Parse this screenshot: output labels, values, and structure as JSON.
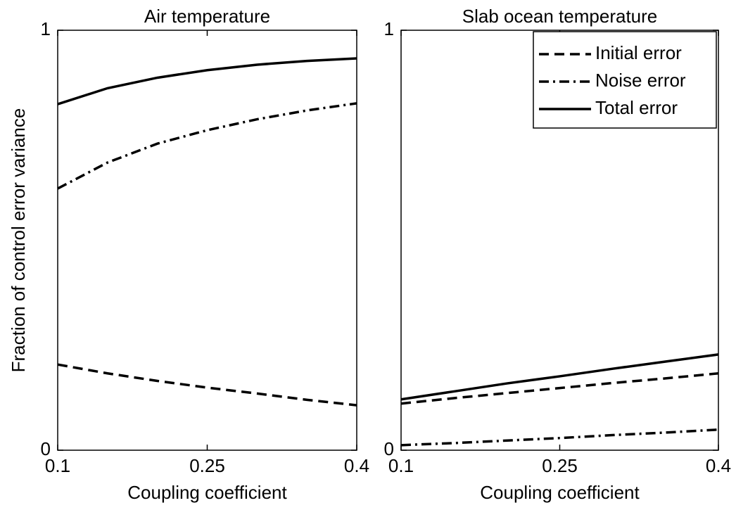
{
  "chart_data": [
    {
      "type": "line",
      "title": "Air temperature",
      "xlabel": "Coupling coefficient",
      "ylabel": "Fraction of control error variance",
      "x": [
        0.1,
        0.15,
        0.2,
        0.25,
        0.3,
        0.35,
        0.4
      ],
      "xlim": [
        0.1,
        0.4
      ],
      "xticks": [
        0.1,
        0.25,
        0.4
      ],
      "ylim": [
        0,
        1
      ],
      "yticks": [
        0,
        1
      ],
      "series": [
        {
          "style": "dashed",
          "color": "#000000",
          "values": [
            0.204,
            0.183,
            0.165,
            0.149,
            0.135,
            0.12,
            0.107
          ]
        },
        {
          "style": "dashdot",
          "color": "#000000",
          "values": [
            0.623,
            0.685,
            0.73,
            0.762,
            0.788,
            0.809,
            0.826
          ]
        },
        {
          "style": "solid",
          "color": "#000000",
          "values": [
            0.824,
            0.862,
            0.887,
            0.905,
            0.918,
            0.927,
            0.933
          ]
        }
      ]
    },
    {
      "type": "line",
      "title": "Slab ocean temperature",
      "xlabel": "Coupling coefficient",
      "x": [
        0.1,
        0.15,
        0.2,
        0.25,
        0.3,
        0.35,
        0.4
      ],
      "xlim": [
        0.1,
        0.4
      ],
      "xticks": [
        0.1,
        0.25,
        0.4
      ],
      "ylim": [
        0,
        1
      ],
      "yticks": [
        0,
        1
      ],
      "legend": "upper right",
      "series": [
        {
          "name": "Initial error",
          "style": "dashed",
          "color": "#000000",
          "values": [
            0.111,
            0.124,
            0.136,
            0.148,
            0.16,
            0.171,
            0.183
          ]
        },
        {
          "name": "Noise error",
          "style": "dashdot",
          "color": "#000000",
          "values": [
            0.012,
            0.017,
            0.023,
            0.029,
            0.036,
            0.042,
            0.049
          ]
        },
        {
          "name": "Total error",
          "style": "solid",
          "color": "#000000",
          "values": [
            0.121,
            0.14,
            0.159,
            0.176,
            0.194,
            0.211,
            0.228
          ]
        }
      ]
    }
  ]
}
